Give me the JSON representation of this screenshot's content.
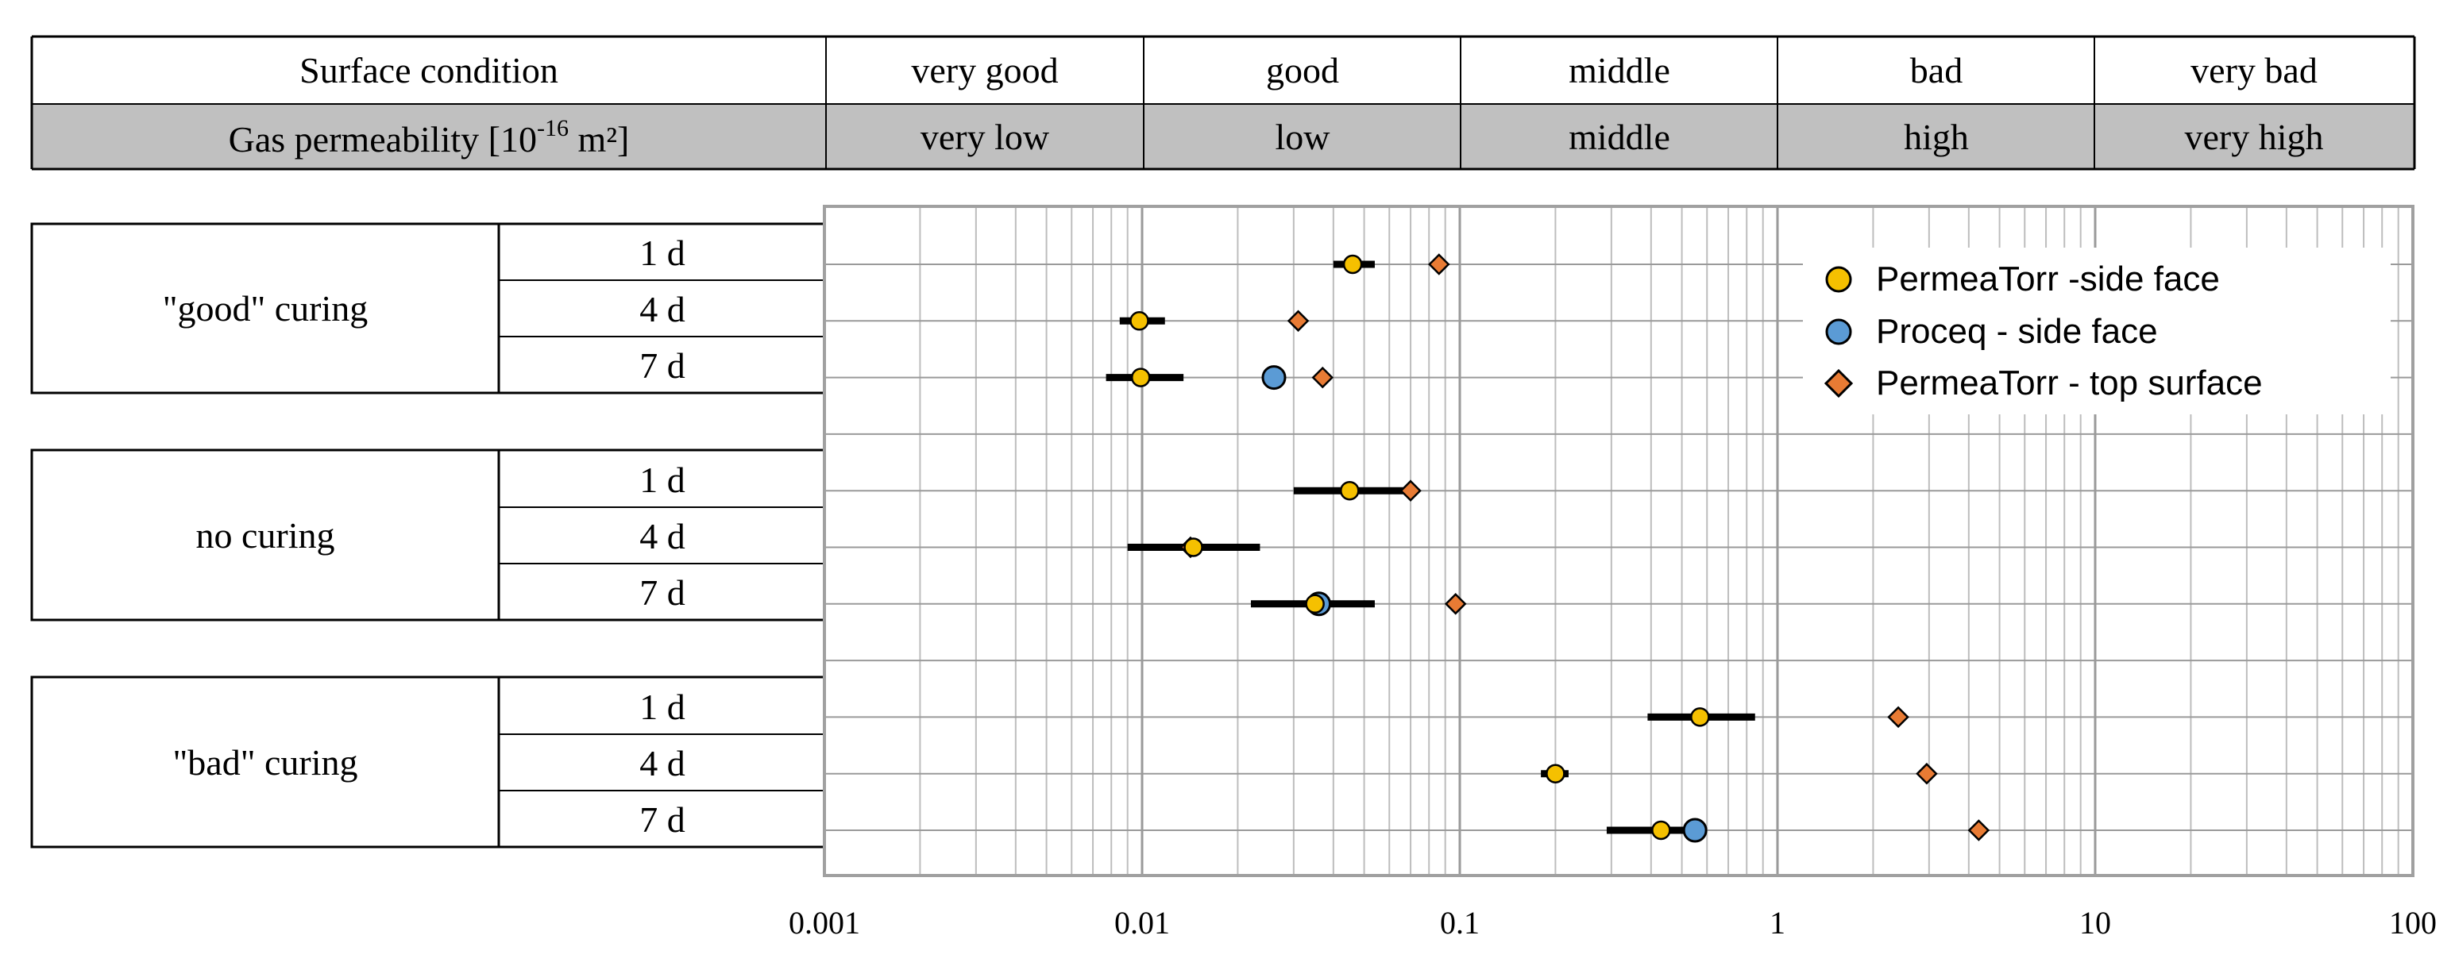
{
  "header": {
    "row1_label": "Surface condition",
    "row1_values": [
      "very good",
      "good",
      "middle",
      "bad",
      "very bad"
    ],
    "row2_label_main": "Gas permeability [10",
    "row2_label_exp": "-16",
    "row2_label_unit": " m²]",
    "row2_values": [
      "very low",
      "low",
      "middle",
      "high",
      "very high"
    ],
    "row2_fill": "#c0c0c0"
  },
  "groups": [
    {
      "label": "\"good\" curing",
      "ages": [
        "1 d",
        "4 d",
        "7 d"
      ]
    },
    {
      "label": "no curing",
      "ages": [
        "1 d",
        "4 d",
        "7 d"
      ]
    },
    {
      "label": "\"bad\" curing",
      "ages": [
        "1 d",
        "4 d",
        "7 d"
      ]
    }
  ],
  "chart_data": {
    "type": "scatter",
    "x_scale": "log",
    "xlim": [
      0.001,
      100
    ],
    "x_ticks": [
      "0.001",
      "0.01",
      "0.1",
      "1",
      "10",
      "100"
    ],
    "grid": true,
    "legend_position": "top-right",
    "rows": [
      "\"good\" curing 1 d",
      "\"good\" curing 4 d",
      "\"good\" curing 7 d",
      "no curing 1 d",
      "no curing 4 d",
      "no curing 7 d",
      "\"bad\" curing 1 d",
      "\"bad\" curing 4 d",
      "\"bad\" curing 7 d"
    ],
    "series": [
      {
        "name": "PermeaTorr -side face",
        "marker": "circle",
        "color": "#f5c000",
        "values": [
          0.046,
          0.0098,
          0.0099,
          0.045,
          0.0145,
          0.035,
          0.57,
          0.2,
          0.43
        ],
        "ranges": [
          [
            0.04,
            0.054
          ],
          [
            0.0085,
            0.0118
          ],
          [
            0.0077,
            0.0135
          ],
          [
            0.03,
            0.072
          ],
          [
            0.009,
            0.0235
          ],
          [
            0.022,
            0.054
          ],
          [
            0.39,
            0.85
          ],
          [
            0.18,
            0.22
          ],
          [
            0.29,
            0.58
          ]
        ]
      },
      {
        "name": "Proceq - side face",
        "marker": "circle",
        "color": "#5b9bd5",
        "values": [
          null,
          null,
          0.026,
          null,
          null,
          0.036,
          null,
          null,
          0.55
        ]
      },
      {
        "name": "PermeaTorr - top surface",
        "marker": "diamond",
        "color": "#e87b34",
        "values": [
          0.086,
          0.031,
          0.037,
          0.07,
          0.0142,
          0.097,
          2.4,
          2.95,
          4.3
        ]
      }
    ]
  }
}
